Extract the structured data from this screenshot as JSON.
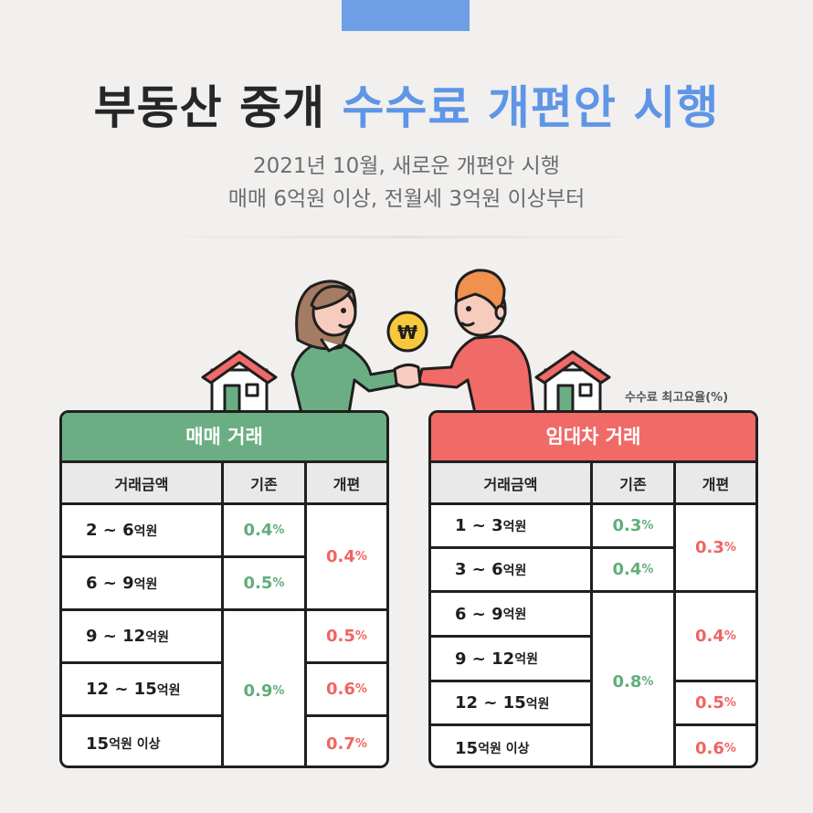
{
  "title": {
    "part1": "부동산 중개",
    "part2": "수수료 개편안 시행"
  },
  "subtitle": {
    "line1": "2021년 10월, 새로운 개편안 시행",
    "line2": "매매 6억원 이상, 전월세 3억원 이상부터"
  },
  "coin_symbol": "₩",
  "rate_note": "수수료 최고요율(%)",
  "colors": {
    "accent_blue": "#5f95e6",
    "sale_green": "#6cae84",
    "lease_red": "#f06a67",
    "old_rate": "#5fae7a",
    "new_rate": "#ef6562"
  },
  "sale": {
    "title": "매매 거래",
    "headers": [
      "거래금액",
      "기존",
      "개편"
    ],
    "rows": [
      {
        "num": "2 ~ 6",
        "unit": "억원"
      },
      {
        "num": "6 ~ 9",
        "unit": "억원"
      },
      {
        "num": "9 ~ 12",
        "unit": "억원"
      },
      {
        "num": "12 ~ 15",
        "unit": "억원"
      },
      {
        "num": "15",
        "unit": "억원 이상"
      }
    ],
    "old": [
      {
        "v": "0.4",
        "u": "%"
      },
      {
        "v": "0.5",
        "u": "%"
      },
      {
        "v": "0.9",
        "u": "%"
      }
    ],
    "new": [
      {
        "v": "0.4",
        "u": "%"
      },
      {
        "v": "0.5",
        "u": "%"
      },
      {
        "v": "0.6",
        "u": "%"
      },
      {
        "v": "0.7",
        "u": "%"
      }
    ]
  },
  "lease": {
    "title": "임대차 거래",
    "headers": [
      "거래금액",
      "기존",
      "개편"
    ],
    "rows": [
      {
        "num": "1 ~ 3",
        "unit": "억원"
      },
      {
        "num": "3 ~ 6",
        "unit": "억원"
      },
      {
        "num": "6 ~ 9",
        "unit": "억원"
      },
      {
        "num": "9 ~ 12",
        "unit": "억원"
      },
      {
        "num": "12 ~ 15",
        "unit": "억원"
      },
      {
        "num": "15",
        "unit": "억원 이상"
      }
    ],
    "old": [
      {
        "v": "0.3",
        "u": "%"
      },
      {
        "v": "0.4",
        "u": "%"
      },
      {
        "v": "0.8",
        "u": "%"
      }
    ],
    "new": [
      {
        "v": "0.3",
        "u": "%"
      },
      {
        "v": "0.4",
        "u": "%"
      },
      {
        "v": "0.5",
        "u": "%"
      },
      {
        "v": "0.6",
        "u": "%"
      }
    ]
  }
}
